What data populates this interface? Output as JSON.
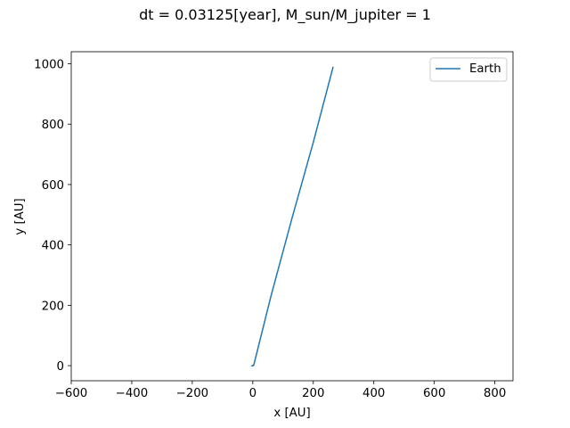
{
  "chart_data": {
    "type": "line",
    "title": "dt = 0.03125[year], M_sun/M_jupiter =   1",
    "xlabel": "x [AU]",
    "ylabel": "y [AU]",
    "xlim": [
      -600,
      860
    ],
    "ylim": [
      -50,
      1040
    ],
    "xticks": [
      -600,
      -400,
      -200,
      0,
      200,
      400,
      600,
      800
    ],
    "yticks": [
      0,
      200,
      400,
      600,
      800,
      1000
    ],
    "xtick_labels": [
      "−600",
      "−400",
      "−200",
      "0",
      "200",
      "400",
      "600",
      "800"
    ],
    "ytick_labels": [
      "0",
      "200",
      "400",
      "600",
      "800",
      "1000"
    ],
    "grid": false,
    "legend_position": "top-right",
    "series": [
      {
        "name": "Earth",
        "color": "#1f77b4",
        "x": [
          0,
          1,
          -3,
          3,
          60,
          130,
          200,
          265
        ],
        "y": [
          0,
          1,
          -1,
          1,
          230,
          490,
          740,
          988
        ]
      }
    ]
  }
}
